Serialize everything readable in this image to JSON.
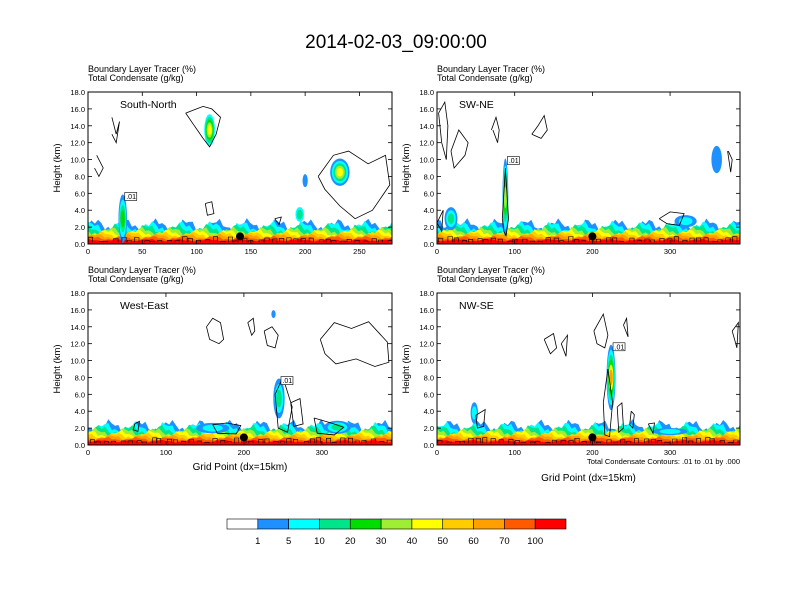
{
  "title": "2014-02-03_09:00:00",
  "colors": {
    "scale": [
      "#ffffff",
      "#1e90ff",
      "#00ffff",
      "#00e58a",
      "#00dd00",
      "#a0ee33",
      "#ffff00",
      "#ffcc00",
      "#ffa000",
      "#ff5a00",
      "#ff0000"
    ],
    "contour": "#000000"
  },
  "chart_data": [
    {
      "type": "heatmap",
      "panel_label": "South-North",
      "title_lines": [
        "Boundary Layer Tracer   (%)",
        "Total Condensate   (g/kg)"
      ],
      "ylabel": "Height (km)",
      "xlabel": "",
      "xlim": [
        0,
        280
      ],
      "ylim": [
        0,
        18
      ],
      "xticks": [
        0,
        50,
        100,
        150,
        200,
        250
      ],
      "yticks": [
        "0.0",
        "2.0",
        "4.0",
        "6.0",
        "8.0",
        "10.0",
        "12.0",
        "14.0",
        "16.0",
        "18.0"
      ],
      "marker_x": 140,
      "contour_label": ".01",
      "blobs": [
        {
          "x": 32,
          "y": 3.0,
          "w": 6,
          "h": 5.5,
          "levels": [
            1,
            2,
            3,
            4
          ]
        },
        {
          "x": 112,
          "y": 13.5,
          "w": 8,
          "h": 3.5,
          "levels": [
            2,
            3,
            4,
            5,
            6
          ]
        },
        {
          "x": 232,
          "y": 8.5,
          "w": 16,
          "h": 3,
          "levels": [
            1,
            2,
            3,
            5,
            6
          ]
        },
        {
          "x": 200,
          "y": 7.5,
          "w": 3,
          "h": 1.3,
          "levels": [
            1
          ]
        },
        {
          "x": 195,
          "y": 3.5,
          "w": 6,
          "h": 1.5,
          "levels": [
            2,
            3
          ]
        }
      ],
      "contour_paths": [
        {
          "x": [
            8,
            14,
            10,
            6
          ],
          "y": [
            10.5,
            9,
            8,
            9
          ]
        },
        {
          "x": [
            22,
            26,
            29,
            26,
            22
          ],
          "y": [
            15,
            13,
            14.5,
            12,
            13
          ]
        },
        {
          "x": [
            90,
            100,
            106,
            114,
            122,
            118,
            112,
            106,
            98,
            90
          ],
          "y": [
            15.5,
            16,
            16.3,
            16,
            15,
            13,
            11.5,
            12.5,
            14,
            15.5
          ]
        },
        {
          "x": [
            212,
            226,
            240,
            258,
            274,
            278,
            262,
            246,
            232,
            218,
            212
          ],
          "y": [
            8,
            10.5,
            11,
            9.5,
            10.5,
            7,
            4,
            3,
            4.5,
            6.5,
            8
          ]
        },
        {
          "x": [
            172,
            178,
            176,
            172
          ],
          "y": [
            3,
            3.2,
            2.3,
            3
          ]
        },
        {
          "x": [
            108,
            114,
            116,
            110,
            108
          ],
          "y": [
            4.8,
            5,
            3.6,
            3.4,
            4.8
          ]
        }
      ]
    },
    {
      "type": "heatmap",
      "panel_label": "SW-NE",
      "title_lines": [
        "Boundary Layer Tracer   (%)",
        "Total Condensate   (g/kg)"
      ],
      "ylabel": "Height (km)",
      "xlabel": "",
      "xlim": [
        0,
        390
      ],
      "ylim": [
        0,
        18
      ],
      "xticks": [
        0,
        100,
        200,
        300
      ],
      "yticks": [
        "0.0",
        "2.0",
        "4.0",
        "6.0",
        "8.0",
        "10.0",
        "12.0",
        "14.0",
        "16.0",
        "18.0"
      ],
      "marker_x": 200,
      "contour_label": ".01",
      "blobs": [
        {
          "x": 88,
          "y": 5.5,
          "w": 5,
          "h": 9,
          "levels": [
            1,
            2,
            3,
            4,
            5
          ]
        },
        {
          "x": 360,
          "y": 10,
          "w": 11,
          "h": 3,
          "levels": [
            1
          ]
        },
        {
          "x": 18,
          "y": 3,
          "w": 14,
          "h": 2.5,
          "levels": [
            1,
            2,
            3
          ]
        },
        {
          "x": 320,
          "y": 2.7,
          "w": 26,
          "h": 1.2,
          "levels": [
            1,
            2
          ]
        }
      ],
      "contour_paths": [
        {
          "x": [
            2,
            10,
            14,
            12,
            6,
            2
          ],
          "y": [
            15.5,
            16.8,
            14,
            10,
            12,
            15.5
          ]
        },
        {
          "x": [
            18,
            28,
            40,
            36,
            22,
            18
          ],
          "y": [
            11,
            13.5,
            12,
            10.5,
            9,
            11
          ]
        },
        {
          "x": [
            122,
            130,
            138,
            142,
            134,
            122
          ],
          "y": [
            13,
            14,
            15.2,
            13.5,
            12.5,
            13
          ]
        },
        {
          "x": [
            70,
            76,
            80,
            78,
            72
          ],
          "y": [
            13.5,
            15,
            13.5,
            12,
            13.5
          ]
        },
        {
          "x": [
            375,
            380,
            378,
            374
          ],
          "y": [
            11,
            10,
            8.5,
            11
          ]
        },
        {
          "x": [
            0,
            8,
            6,
            0
          ],
          "y": [
            2.5,
            4,
            1.5,
            2.5
          ]
        },
        {
          "x": [
            84,
            88,
            92,
            89,
            86,
            84
          ],
          "y": [
            3,
            9,
            3,
            1,
            1.5,
            3
          ]
        },
        {
          "x": [
            286,
            300,
            318,
            312,
            296,
            286
          ],
          "y": [
            3,
            3.8,
            3.6,
            2.2,
            2.4,
            3
          ]
        }
      ]
    },
    {
      "type": "heatmap",
      "panel_label": "West-East",
      "title_lines": [
        "Boundary Layer Tracer   (%)",
        "Total Condensate   (g/kg)"
      ],
      "ylabel": "Height (km)",
      "xlabel": "Grid Point (dx=15km)",
      "xlim": [
        0,
        390
      ],
      "ylim": [
        0,
        18
      ],
      "xticks": [
        0,
        100,
        200,
        300
      ],
      "yticks": [
        "0.0",
        "2.0",
        "4.0",
        "6.0",
        "8.0",
        "10.0",
        "12.0",
        "14.0",
        "16.0",
        "18.0"
      ],
      "marker_x": 200,
      "contour_label": ".01",
      "blobs": [
        {
          "x": 245,
          "y": 5.5,
          "w": 12,
          "h": 4.5,
          "levels": [
            1,
            2,
            3
          ]
        },
        {
          "x": 238,
          "y": 15.5,
          "w": 3,
          "h": 0.7,
          "levels": [
            1
          ]
        },
        {
          "x": 320,
          "y": 2.1,
          "w": 32,
          "h": 1.3,
          "levels": [
            1,
            2,
            3
          ]
        },
        {
          "x": 160,
          "y": 2.0,
          "w": 40,
          "h": 1.0,
          "levels": [
            1,
            2
          ]
        }
      ],
      "contour_paths": [
        {
          "x": [
            152,
            160,
            170,
            174,
            168,
            156,
            152
          ],
          "y": [
            14,
            15,
            14.5,
            12.5,
            12,
            12.5,
            14
          ]
        },
        {
          "x": [
            226,
            236,
            244,
            240,
            230,
            226
          ],
          "y": [
            13.5,
            14,
            13,
            11.5,
            11.8,
            13.5
          ]
        },
        {
          "x": [
            298,
            316,
            338,
            360,
            384,
            386,
            368,
            344,
            318,
            304,
            298
          ],
          "y": [
            12.5,
            14.5,
            13.8,
            14.6,
            12.2,
            9.8,
            9.3,
            10.2,
            9.6,
            10.8,
            12.5
          ]
        },
        {
          "x": [
            205,
            212,
            214,
            210,
            205
          ],
          "y": [
            14.5,
            15,
            13.5,
            13,
            14.5
          ]
        },
        {
          "x": [
            240,
            250,
            262,
            256,
            244,
            240
          ],
          "y": [
            6,
            8,
            4.5,
            1.5,
            2,
            6
          ]
        },
        {
          "x": [
            260,
            272,
            276,
            264,
            260
          ],
          "y": [
            5,
            5.5,
            2.5,
            2.2,
            5
          ]
        },
        {
          "x": [
            290,
            312,
            328,
            316,
            294,
            290
          ],
          "y": [
            3.2,
            2.6,
            2.1,
            1.2,
            1.4,
            3.2
          ]
        },
        {
          "x": [
            160,
            178,
            196,
            190,
            166,
            160
          ],
          "y": [
            2.4,
            2.6,
            2.3,
            1.3,
            1.4,
            2.4
          ]
        },
        {
          "x": [
            60,
            66,
            64,
            58,
            60
          ],
          "y": [
            2.5,
            2.8,
            1.6,
            1.8,
            2.5
          ]
        }
      ]
    },
    {
      "type": "heatmap",
      "panel_label": "NW-SE",
      "title_lines": [
        "Boundary Layer Tracer   (%)",
        "Total Condensate   (g/kg)"
      ],
      "ylabel": "Height (km)",
      "xlabel": "Grid Point (dx=15km)",
      "xlim": [
        0,
        390
      ],
      "ylim": [
        0,
        18
      ],
      "xticks": [
        0,
        100,
        200,
        300
      ],
      "yticks": [
        "0.0",
        "2.0",
        "4.0",
        "6.0",
        "8.0",
        "10.0",
        "12.0",
        "14.0",
        "16.0",
        "18.0"
      ],
      "marker_x": 200,
      "contour_label": ".01",
      "contour_note": "Total Condensate Contours: .01 to .01 by .000",
      "blobs": [
        {
          "x": 224,
          "y": 8,
          "w": 9,
          "h": 7.5,
          "levels": [
            1,
            2,
            3,
            4,
            6,
            8
          ]
        },
        {
          "x": 48,
          "y": 3.8,
          "w": 7,
          "h": 2.3,
          "levels": [
            1,
            2
          ]
        },
        {
          "x": 300,
          "y": 1.6,
          "w": 42,
          "h": 0.6,
          "levels": [
            1,
            2
          ]
        }
      ],
      "contour_paths": [
        {
          "x": [
            138,
            150,
            154,
            146,
            138
          ],
          "y": [
            12.5,
            13.2,
            11.5,
            10.8,
            12.5
          ]
        },
        {
          "x": [
            160,
            168,
            166,
            160
          ],
          "y": [
            12,
            13,
            10.5,
            12
          ]
        },
        {
          "x": [
            202,
            214,
            220,
            216,
            206,
            202
          ],
          "y": [
            13.5,
            15.5,
            13,
            11.5,
            12,
            13.5
          ]
        },
        {
          "x": [
            240,
            244,
            246,
            240
          ],
          "y": [
            14.2,
            15,
            12.8,
            14.2
          ]
        },
        {
          "x": [
            380,
            388,
            386,
            380
          ],
          "y": [
            13.5,
            14.5,
            11.5,
            13.5
          ]
        },
        {
          "x": [
            214,
            220,
            226,
            222,
            216,
            214
          ],
          "y": [
            5,
            9,
            5,
            1,
            1.2,
            5
          ]
        },
        {
          "x": [
            232,
            238,
            240,
            234,
            232
          ],
          "y": [
            4.5,
            5,
            2,
            1.5,
            4.5
          ]
        },
        {
          "x": [
            250,
            254,
            252,
            248,
            250
          ],
          "y": [
            4,
            3.6,
            2,
            2.4,
            4
          ]
        },
        {
          "x": [
            50,
            62,
            60,
            52,
            50
          ],
          "y": [
            3.5,
            4.2,
            2.2,
            2,
            3.5
          ]
        },
        {
          "x": [
            272,
            280,
            278,
            272
          ],
          "y": [
            2.5,
            2.6,
            1.4,
            2.5
          ]
        }
      ]
    }
  ],
  "colorbar": {
    "labels": [
      "1",
      "5",
      "10",
      "20",
      "30",
      "40",
      "50",
      "60",
      "70",
      "100"
    ]
  }
}
